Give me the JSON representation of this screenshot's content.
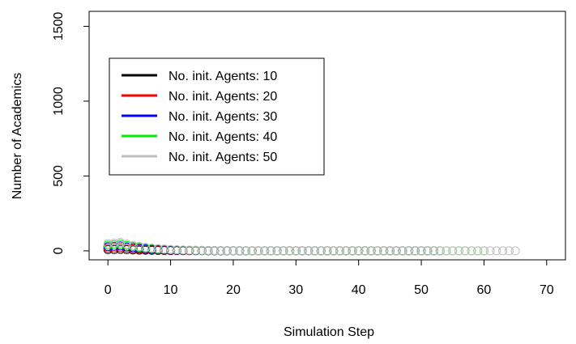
{
  "chart_data": {
    "type": "scatter",
    "title": "",
    "xlabel": "Simulation Step",
    "ylabel": "Number of Academics",
    "xlim": [
      -3,
      73
    ],
    "ylim": [
      -60,
      1600
    ],
    "xticks": [
      0,
      10,
      20,
      30,
      40,
      50,
      60,
      70
    ],
    "yticks": [
      0,
      500,
      1000,
      1500
    ],
    "grid": false,
    "legend": "top-left",
    "series": [
      {
        "name": "No. init. Agents: 10",
        "color": "#000000",
        "last_step": 52,
        "peak": 10
      },
      {
        "name": "No. init. Agents: 20",
        "color": "#ff0000",
        "last_step": 51,
        "peak": 22
      },
      {
        "name": "No. init. Agents: 30",
        "color": "#0000ff",
        "last_step": 53,
        "peak": 33
      },
      {
        "name": "No. init. Agents: 40",
        "color": "#00ee00",
        "last_step": 60,
        "peak": 45
      },
      {
        "name": "No. init. Agents: 50",
        "color": "#bebebe",
        "last_step": 65,
        "peak": 56
      }
    ]
  }
}
